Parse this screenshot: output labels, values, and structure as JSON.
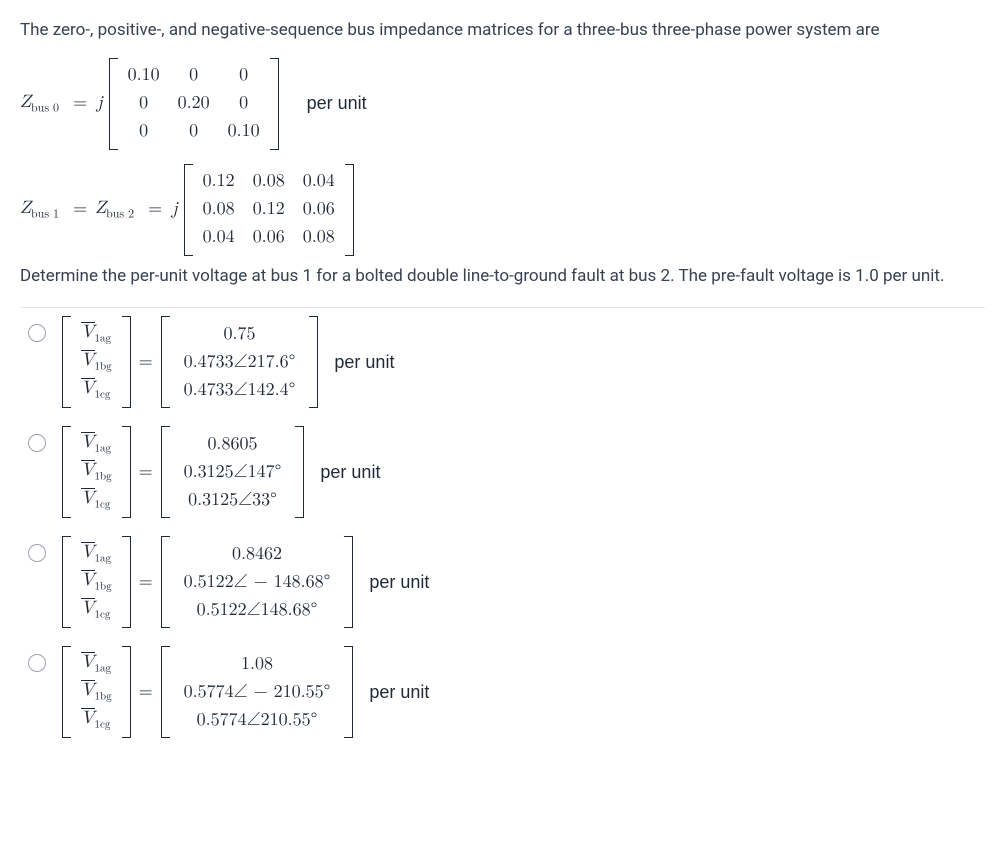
{
  "problem": {
    "intro1": "The zero-, positive-, and negative-sequence bus impedance matrices for a three-bus three-phase power system are",
    "intro2": "Determine the per-unit voltage at bus 1 for a bolted double line-to-ground fault at bus 2. The pre-fault voltage is 1.0 per unit."
  },
  "eq1": {
    "lhs_var": "Z",
    "lhs_sub": "bus 0",
    "eq": "=",
    "j": "j",
    "matrix": [
      [
        "0.10",
        "0",
        "0"
      ],
      [
        "0",
        "0.20",
        "0"
      ],
      [
        "0",
        "0",
        "0.10"
      ]
    ],
    "trail": "per unit"
  },
  "eq2": {
    "lhs1_var": "Z",
    "lhs1_sub": "bus 1",
    "eq": "=",
    "lhs2_var": "Z",
    "lhs2_sub": "bus 2",
    "j": "j",
    "matrix": [
      [
        "0.12",
        "0.08",
        "0.04"
      ],
      [
        "0.08",
        "0.12",
        "0.06"
      ],
      [
        "0.04",
        "0.06",
        "0.08"
      ]
    ]
  },
  "vec_labels": {
    "a": "1ag",
    "b": "1bg",
    "c": "1cg"
  },
  "per_unit": "per unit",
  "options": [
    {
      "vals": [
        "0.75",
        "0.4733∠217.6°",
        "0.4733∠142.4°"
      ]
    },
    {
      "vals": [
        "0.8605",
        "0.3125∠147°",
        "0.3125∠33°"
      ]
    },
    {
      "vals": [
        "0.8462",
        "0.5122∠ − 148.68°",
        "0.5122∠148.68°"
      ]
    },
    {
      "vals": [
        "1.08",
        "0.5774∠ − 210.55°",
        "0.5774∠210.55°"
      ]
    }
  ],
  "style": {
    "text_color": "#374151",
    "math_color": "#1f2937",
    "radio_border": "#9ca3af",
    "divider": "#e5e7eb",
    "bg": "#ffffff",
    "body_fontsize": 17,
    "math_fontsize": 18
  }
}
